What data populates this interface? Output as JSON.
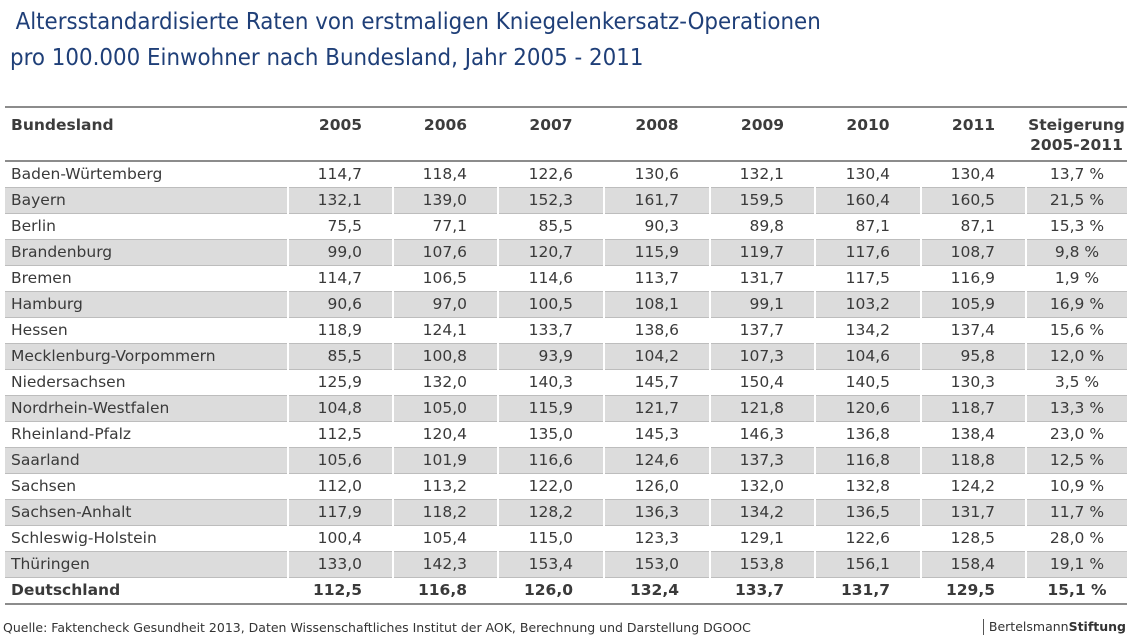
{
  "chart_data": {
    "type": "table",
    "title_line1": "Altersstandardisierte Raten von erstmaligen Kniegelenkersatz-Operationen",
    "title_line2": "pro 100.000 Einwohner nach Bundesland, Jahr 2005 - 2011",
    "headers": {
      "land": "Bundesland",
      "years": [
        "2005",
        "2006",
        "2007",
        "2008",
        "2009",
        "2010",
        "2011"
      ],
      "increase_line1": "Steigerung",
      "increase_line2": "2005-2011"
    },
    "rows": [
      {
        "land": "Baden-Würtemberg",
        "values": [
          "114,7",
          "118,4",
          "122,6",
          "130,6",
          "132,1",
          "130,4",
          "130,4"
        ],
        "increase": "13,7 %"
      },
      {
        "land": "Bayern",
        "values": [
          "132,1",
          "139,0",
          "152,3",
          "161,7",
          "159,5",
          "160,4",
          "160,5"
        ],
        "increase": "21,5 %"
      },
      {
        "land": "Berlin",
        "values": [
          "75,5",
          "77,1",
          "85,5",
          "90,3",
          "89,8",
          "87,1",
          "87,1"
        ],
        "increase": "15,3 %"
      },
      {
        "land": "Brandenburg",
        "values": [
          "99,0",
          "107,6",
          "120,7",
          "115,9",
          "119,7",
          "117,6",
          "108,7"
        ],
        "increase": "9,8 %"
      },
      {
        "land": "Bremen",
        "values": [
          "114,7",
          "106,5",
          "114,6",
          "113,7",
          "131,7",
          "117,5",
          "116,9"
        ],
        "increase": "1,9 %"
      },
      {
        "land": "Hamburg",
        "values": [
          "90,6",
          "97,0",
          "100,5",
          "108,1",
          "99,1",
          "103,2",
          "105,9"
        ],
        "increase": "16,9 %"
      },
      {
        "land": "Hessen",
        "values": [
          "118,9",
          "124,1",
          "133,7",
          "138,6",
          "137,7",
          "134,2",
          "137,4"
        ],
        "increase": "15,6 %"
      },
      {
        "land": "Mecklenburg-Vorpommern",
        "values": [
          "85,5",
          "100,8",
          "93,9",
          "104,2",
          "107,3",
          "104,6",
          "95,8"
        ],
        "increase": "12,0 %"
      },
      {
        "land": "Niedersachsen",
        "values": [
          "125,9",
          "132,0",
          "140,3",
          "145,7",
          "150,4",
          "140,5",
          "130,3"
        ],
        "increase": "3,5 %"
      },
      {
        "land": "Nordrhein-Westfalen",
        "values": [
          "104,8",
          "105,0",
          "115,9",
          "121,7",
          "121,8",
          "120,6",
          "118,7"
        ],
        "increase": "13,3 %"
      },
      {
        "land": "Rheinland-Pfalz",
        "values": [
          "112,5",
          "120,4",
          "135,0",
          "145,3",
          "146,3",
          "136,8",
          "138,4"
        ],
        "increase": "23,0 %"
      },
      {
        "land": "Saarland",
        "values": [
          "105,6",
          "101,9",
          "116,6",
          "124,6",
          "137,3",
          "116,8",
          "118,8"
        ],
        "increase": "12,5 %"
      },
      {
        "land": "Sachsen",
        "values": [
          "112,0",
          "113,2",
          "122,0",
          "126,0",
          "132,0",
          "132,8",
          "124,2"
        ],
        "increase": "10,9 %"
      },
      {
        "land": "Sachsen-Anhalt",
        "values": [
          "117,9",
          "118,2",
          "128,2",
          "136,3",
          "134,2",
          "136,5",
          "131,7"
        ],
        "increase": "11,7 %"
      },
      {
        "land": "Schleswig-Holstein",
        "values": [
          "100,4",
          "105,4",
          "115,0",
          "123,3",
          "129,1",
          "122,6",
          "128,5"
        ],
        "increase": "28,0 %"
      },
      {
        "land": "Thüringen",
        "values": [
          "133,0",
          "142,3",
          "153,4",
          "153,0",
          "153,8",
          "156,1",
          "158,4"
        ],
        "increase": "19,1 %"
      }
    ],
    "total": {
      "land": "Deutschland",
      "values": [
        "112,5",
        "116,8",
        "126,0",
        "132,4",
        "133,7",
        "131,7",
        "129,5"
      ],
      "increase": "15,1 %"
    }
  },
  "footer": {
    "source": "Quelle: Faktencheck Gesundheit 2013, Daten Wissenschaftliches Institut der AOK, Berechnung und Darstellung DGOOC",
    "logo_part1": "Bertelsmann",
    "logo_part2": "Stiftung"
  },
  "colors": {
    "title": "#1f3f78",
    "stripe": "#dcdcdc",
    "rule": "#8c8c8c"
  }
}
